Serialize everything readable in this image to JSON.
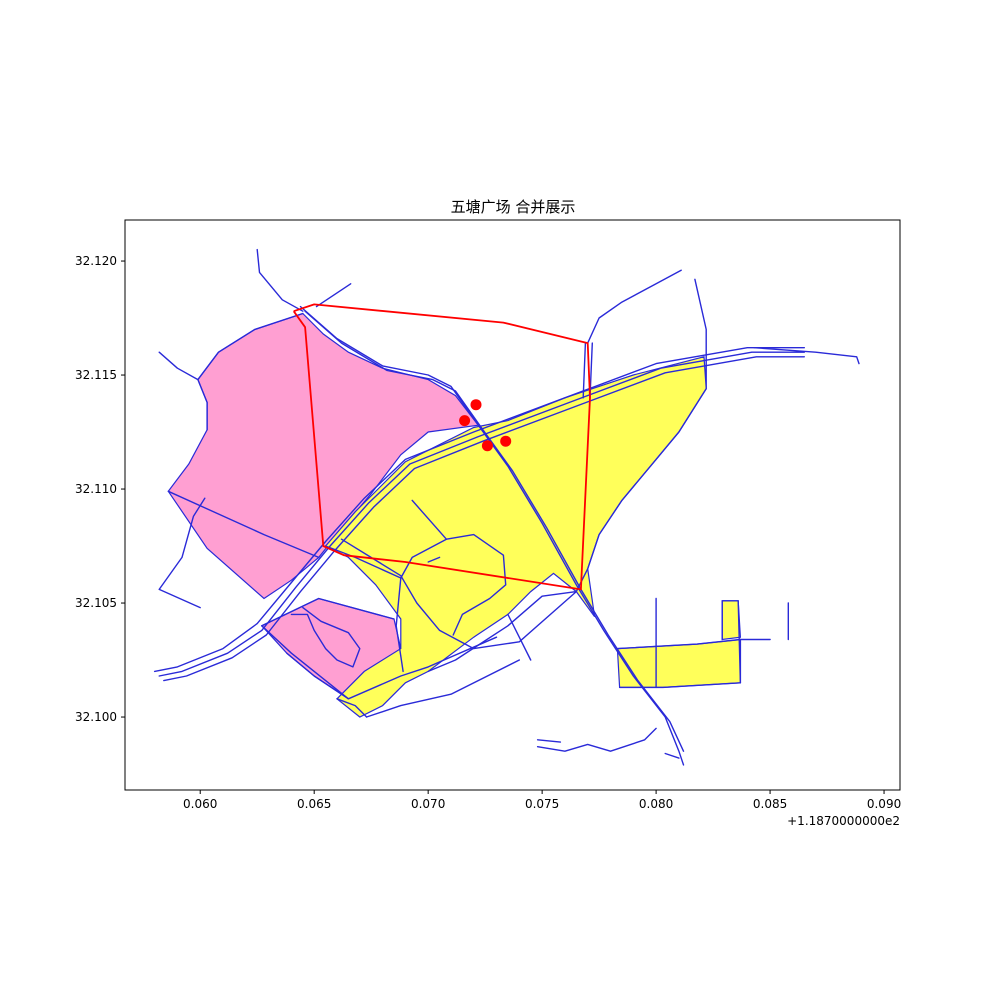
{
  "title": "五塘广场 合并展示",
  "chart_data": {
    "type": "map",
    "title": "五塘广场 合并展示",
    "xlim": [
      0.0567,
      0.0907
    ],
    "ylim": [
      32.0968,
      32.1218
    ],
    "x_ticks": [
      0.06,
      0.065,
      0.07,
      0.075,
      0.08,
      0.085,
      0.09
    ],
    "x_tick_labels": [
      "0.060",
      "0.065",
      "0.070",
      "0.075",
      "0.080",
      "0.085",
      "0.090"
    ],
    "x_offset_label": "+1.1870000000e2",
    "y_ticks": [
      32.1,
      32.105,
      32.11,
      32.115,
      32.12
    ],
    "y_tick_labels": [
      "32.100",
      "32.105",
      "32.110",
      "32.115",
      "32.120"
    ],
    "grid": false,
    "colors": {
      "pink_area": "#ff9fd2",
      "yellow_area": "#ffff5a",
      "roads": "#2a2ad8",
      "boundary": "#ff0000",
      "points": "#ff0000"
    },
    "pink_polygons": [
      [
        [
          0.0599,
          32.1148
        ],
        [
          0.0608,
          32.116
        ],
        [
          0.0624,
          32.117
        ],
        [
          0.0645,
          32.1177
        ],
        [
          0.0654,
          32.1168
        ],
        [
          0.0665,
          32.116
        ],
        [
          0.068,
          32.1153
        ],
        [
          0.07,
          32.1148
        ],
        [
          0.0712,
          32.1141
        ],
        [
          0.0722,
          32.1128
        ],
        [
          0.07,
          32.1125
        ],
        [
          0.0688,
          32.1115
        ],
        [
          0.0675,
          32.1098
        ],
        [
          0.066,
          32.108
        ],
        [
          0.0652,
          32.107
        ],
        [
          0.064,
          32.106
        ],
        [
          0.0628,
          32.1052
        ],
        [
          0.0603,
          32.1074
        ],
        [
          0.0586,
          32.1099
        ],
        [
          0.0595,
          32.1111
        ],
        [
          0.0603,
          32.1126
        ],
        [
          0.0603,
          32.1138
        ]
      ],
      [
        [
          0.0627,
          32.104
        ],
        [
          0.0652,
          32.1052
        ],
        [
          0.0685,
          32.1043
        ],
        [
          0.0688,
          32.103
        ],
        [
          0.0688,
          32.1018
        ],
        [
          0.0665,
          32.1008
        ],
        [
          0.065,
          32.1018
        ],
        [
          0.0638,
          32.1028
        ]
      ]
    ],
    "yellow_polygons": [
      [
        [
          0.0655,
          32.1075
        ],
        [
          0.0668,
          32.109
        ],
        [
          0.069,
          32.1112
        ],
        [
          0.072,
          32.1127
        ],
        [
          0.0735,
          32.113
        ],
        [
          0.076,
          32.114
        ],
        [
          0.079,
          32.115
        ],
        [
          0.0821,
          32.1158
        ],
        [
          0.0822,
          32.1144
        ],
        [
          0.081,
          32.1125
        ],
        [
          0.08,
          32.1113
        ],
        [
          0.0785,
          32.1095
        ],
        [
          0.0775,
          32.108
        ],
        [
          0.077,
          32.1065
        ],
        [
          0.0773,
          32.1044
        ],
        [
          0.0765,
          32.1055
        ],
        [
          0.0755,
          32.1063
        ],
        [
          0.0745,
          32.1055
        ],
        [
          0.0735,
          32.1045
        ],
        [
          0.072,
          32.1035
        ],
        [
          0.07,
          32.102
        ],
        [
          0.069,
          32.1015
        ],
        [
          0.068,
          32.1005
        ],
        [
          0.067,
          32.1
        ],
        [
          0.066,
          32.1008
        ],
        [
          0.0672,
          32.102
        ],
        [
          0.0688,
          32.103
        ],
        [
          0.0688,
          32.1043
        ],
        [
          0.0677,
          32.1058
        ],
        [
          0.0665,
          32.107
        ]
      ],
      [
        [
          0.0783,
          32.103
        ],
        [
          0.0818,
          32.1032
        ],
        [
          0.0837,
          32.1034
        ],
        [
          0.0837,
          32.1015
        ],
        [
          0.0803,
          32.1013
        ],
        [
          0.0784,
          32.1013
        ]
      ],
      [
        [
          0.0829,
          32.1051
        ],
        [
          0.0836,
          32.1051
        ],
        [
          0.0837,
          32.1035
        ],
        [
          0.0829,
          32.1034
        ]
      ]
    ],
    "red_boundary": [
      [
        0.0641,
        32.1178
      ],
      [
        0.065,
        32.1181
      ],
      [
        0.0733,
        32.1173
      ],
      [
        0.077,
        32.1164
      ],
      [
        0.0771,
        32.114
      ],
      [
        0.0767,
        32.1056
      ],
      [
        0.069,
        32.1068
      ],
      [
        0.0663,
        32.1071
      ],
      [
        0.0654,
        32.1075
      ],
      [
        0.0646,
        32.1171
      ],
      [
        0.0641,
        32.1178
      ]
    ],
    "points": [
      [
        0.0716,
        32.113
      ],
      [
        0.0721,
        32.1137
      ],
      [
        0.0726,
        32.1119
      ],
      [
        0.0734,
        32.1121
      ]
    ],
    "roads": [
      [
        [
          0.058,
          32.102
        ],
        [
          0.059,
          32.1022
        ],
        [
          0.061,
          32.103
        ],
        [
          0.0625,
          32.1041
        ],
        [
          0.064,
          32.1059
        ],
        [
          0.0655,
          32.1077
        ],
        [
          0.0672,
          32.1096
        ],
        [
          0.069,
          32.1113
        ],
        [
          0.072,
          32.1125
        ],
        [
          0.076,
          32.114
        ],
        [
          0.08,
          32.1155
        ],
        [
          0.084,
          32.1162
        ],
        [
          0.0865,
          32.1162
        ]
      ],
      [
        [
          0.0582,
          32.1018
        ],
        [
          0.0592,
          32.102
        ],
        [
          0.0612,
          32.1028
        ],
        [
          0.0627,
          32.1038
        ],
        [
          0.0642,
          32.1057
        ],
        [
          0.0657,
          32.1075
        ],
        [
          0.0674,
          32.1094
        ],
        [
          0.0692,
          32.1111
        ],
        [
          0.0722,
          32.1123
        ],
        [
          0.0762,
          32.1138
        ],
        [
          0.0802,
          32.1153
        ],
        [
          0.0842,
          32.116
        ],
        [
          0.0865,
          32.116
        ]
      ],
      [
        [
          0.0584,
          32.1016
        ],
        [
          0.0594,
          32.1018
        ],
        [
          0.0614,
          32.1026
        ],
        [
          0.0629,
          32.1036
        ],
        [
          0.0644,
          32.1055
        ],
        [
          0.0659,
          32.1073
        ],
        [
          0.0676,
          32.1092
        ],
        [
          0.0694,
          32.1109
        ],
        [
          0.0724,
          32.1121
        ],
        [
          0.0764,
          32.1136
        ],
        [
          0.0804,
          32.1151
        ],
        [
          0.0844,
          32.1158
        ],
        [
          0.0865,
          32.1158
        ]
      ],
      [
        [
          0.0843,
          32.1162
        ],
        [
          0.087,
          32.116
        ],
        [
          0.0888,
          32.1158
        ],
        [
          0.0889,
          32.1155
        ]
      ],
      [
        [
          0.0644,
          32.118
        ],
        [
          0.066,
          32.1166
        ],
        [
          0.068,
          32.1154
        ],
        [
          0.07,
          32.115
        ],
        [
          0.071,
          32.1145
        ],
        [
          0.0722,
          32.1128
        ],
        [
          0.0735,
          32.111
        ],
        [
          0.075,
          32.1085
        ],
        [
          0.0765,
          32.1058
        ],
        [
          0.0777,
          32.1038
        ],
        [
          0.079,
          32.1018
        ],
        [
          0.0804,
          32.1
        ],
        [
          0.081,
          32.0985
        ],
        [
          0.0812,
          32.0979
        ]
      ],
      [
        [
          0.0646,
          32.1178
        ],
        [
          0.0662,
          32.1164
        ],
        [
          0.0682,
          32.1152
        ],
        [
          0.0702,
          32.1148
        ],
        [
          0.0712,
          32.1143
        ],
        [
          0.0724,
          32.1126
        ],
        [
          0.0737,
          32.1108
        ],
        [
          0.0752,
          32.1083
        ],
        [
          0.0767,
          32.1056
        ],
        [
          0.0779,
          32.1036
        ],
        [
          0.0792,
          32.1016
        ],
        [
          0.0806,
          32.0998
        ],
        [
          0.0812,
          32.0985
        ]
      ],
      [
        [
          0.0625,
          32.1205
        ],
        [
          0.0626,
          32.1195
        ],
        [
          0.0636,
          32.1183
        ],
        [
          0.0645,
          32.1178
        ]
      ],
      [
        [
          0.0651,
          32.118
        ],
        [
          0.0666,
          32.119
        ]
      ],
      [
        [
          0.0603,
          32.1126
        ],
        [
          0.0603,
          32.1138
        ],
        [
          0.0599,
          32.1148
        ],
        [
          0.059,
          32.1153
        ],
        [
          0.0582,
          32.116
        ]
      ],
      [
        [
          0.0602,
          32.1096
        ],
        [
          0.0597,
          32.1088
        ],
        [
          0.0592,
          32.107
        ],
        [
          0.0582,
          32.1056
        ],
        [
          0.06,
          32.1048
        ]
      ],
      [
        [
          0.0599,
          32.1148
        ],
        [
          0.0608,
          32.116
        ],
        [
          0.0624,
          32.117
        ],
        [
          0.0645,
          32.1177
        ]
      ],
      [
        [
          0.0586,
          32.1099
        ],
        [
          0.0628,
          32.108
        ],
        [
          0.0652,
          32.107
        ]
      ],
      [
        [
          0.077,
          32.1164
        ],
        [
          0.0775,
          32.1175
        ],
        [
          0.0785,
          32.1182
        ],
        [
          0.08,
          32.119
        ],
        [
          0.0811,
          32.1196
        ]
      ],
      [
        [
          0.0769,
          32.1164
        ],
        [
          0.0768,
          32.114
        ]
      ],
      [
        [
          0.0771,
          32.114
        ],
        [
          0.0772,
          32.1164
        ]
      ],
      [
        [
          0.0817,
          32.1192
        ],
        [
          0.0822,
          32.117
        ],
        [
          0.0822,
          32.1144
        ],
        [
          0.081,
          32.1125
        ],
        [
          0.08,
          32.1113
        ],
        [
          0.0785,
          32.1095
        ],
        [
          0.0775,
          32.108
        ],
        [
          0.077,
          32.1065
        ],
        [
          0.0765,
          32.1055
        ]
      ],
      [
        [
          0.0662,
          32.1078
        ],
        [
          0.0688,
          32.1062
        ],
        [
          0.0695,
          32.105
        ],
        [
          0.0705,
          32.1038
        ],
        [
          0.072,
          32.103
        ],
        [
          0.074,
          32.1033
        ],
        [
          0.0765,
          32.1055
        ]
      ],
      [
        [
          0.0693,
          32.1095
        ],
        [
          0.0708,
          32.1078
        ]
      ],
      [
        [
          0.07,
          32.1068
        ],
        [
          0.0705,
          32.107
        ]
      ],
      [
        [
          0.0655,
          32.1075
        ],
        [
          0.0668,
          32.107
        ],
        [
          0.0688,
          32.1061
        ]
      ],
      [
        [
          0.0688,
          32.1061
        ],
        [
          0.0693,
          32.107
        ],
        [
          0.0708,
          32.1078
        ],
        [
          0.072,
          32.108
        ],
        [
          0.0733,
          32.1071
        ],
        [
          0.0734,
          32.1058
        ],
        [
          0.0727,
          32.1052
        ],
        [
          0.0715,
          32.1045
        ],
        [
          0.0711,
          32.1036
        ]
      ],
      [
        [
          0.0688,
          32.1061
        ],
        [
          0.0686,
          32.104
        ],
        [
          0.0689,
          32.102
        ]
      ],
      [
        [
          0.07,
          32.102
        ],
        [
          0.0712,
          32.1025
        ],
        [
          0.0735,
          32.104
        ],
        [
          0.075,
          32.1053
        ],
        [
          0.0765,
          32.1055
        ]
      ],
      [
        [
          0.0665,
          32.1008
        ],
        [
          0.0688,
          32.1018
        ],
        [
          0.07,
          32.1022
        ],
        [
          0.073,
          32.1035
        ]
      ],
      [
        [
          0.0673,
          32.1
        ],
        [
          0.0688,
          32.1005
        ],
        [
          0.071,
          32.101
        ],
        [
          0.074,
          32.1025
        ]
      ],
      [
        [
          0.0673,
          32.1
        ],
        [
          0.0668,
          32.1005
        ],
        [
          0.066,
          32.1008
        ]
      ],
      [
        [
          0.0735,
          32.1045
        ],
        [
          0.0745,
          32.1025
        ]
      ],
      [
        [
          0.0627,
          32.104
        ],
        [
          0.0652,
          32.1052
        ],
        [
          0.0685,
          32.1043
        ]
      ],
      [
        [
          0.0627,
          32.104
        ],
        [
          0.064,
          32.1028
        ],
        [
          0.0665,
          32.1008
        ]
      ],
      [
        [
          0.0638,
          32.1028
        ],
        [
          0.065,
          32.1018
        ],
        [
          0.0665,
          32.1008
        ]
      ],
      [
        [
          0.064,
          32.1045
        ],
        [
          0.0647,
          32.1045
        ],
        [
          0.065,
          32.1038
        ],
        [
          0.0655,
          32.103
        ],
        [
          0.066,
          32.1025
        ],
        [
          0.0667,
          32.1022
        ],
        [
          0.067,
          32.103
        ],
        [
          0.0665,
          32.1037
        ],
        [
          0.0653,
          32.1042
        ],
        [
          0.0645,
          32.1048
        ]
      ],
      [
        [
          0.0783,
          32.103
        ],
        [
          0.0818,
          32.1032
        ],
        [
          0.0837,
          32.1034
        ],
        [
          0.085,
          32.1034
        ]
      ],
      [
        [
          0.0784,
          32.1013
        ],
        [
          0.0803,
          32.1013
        ],
        [
          0.0837,
          32.1015
        ]
      ],
      [
        [
          0.08,
          32.1052
        ],
        [
          0.08,
          32.1013
        ]
      ],
      [
        [
          0.0837,
          32.1034
        ],
        [
          0.0837,
          32.1015
        ],
        [
          0.0836,
          32.1051
        ],
        [
          0.0829,
          32.1051
        ],
        [
          0.0829,
          32.1034
        ]
      ],
      [
        [
          0.0858,
          32.105
        ],
        [
          0.0858,
          32.1034
        ]
      ],
      [
        [
          0.08,
          32.0995
        ],
        [
          0.0795,
          32.099
        ],
        [
          0.078,
          32.0985
        ],
        [
          0.077,
          32.0988
        ],
        [
          0.076,
          32.0985
        ],
        [
          0.0748,
          32.0987
        ]
      ],
      [
        [
          0.0748,
          32.099
        ],
        [
          0.0758,
          32.0989
        ]
      ],
      [
        [
          0.0804,
          32.0984
        ],
        [
          0.081,
          32.0982
        ]
      ]
    ]
  }
}
